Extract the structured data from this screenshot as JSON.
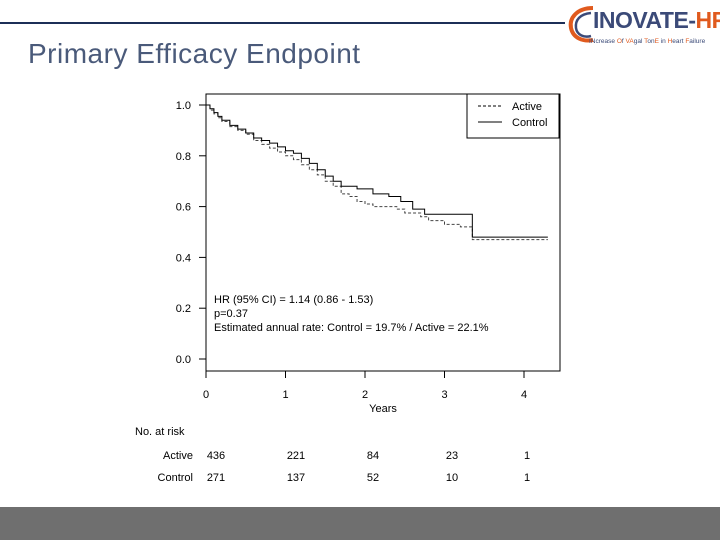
{
  "slide": {
    "title": "Primary Efficacy Endpoint"
  },
  "logo": {
    "name_main": "INOVATE-",
    "name_accent": "HF",
    "tagline_parts": [
      "INcrease ",
      "O",
      "f ",
      "VA",
      "gal ",
      "T",
      "on",
      "E",
      " in ",
      "H",
      "eart ",
      "F",
      "ailure"
    ]
  },
  "colors": {
    "title": "#4a5a7a",
    "rule": "#1c2f57",
    "logo_blue": "#3b4a78",
    "logo_orange": "#e05a1e",
    "footer": "#6f6f6f"
  },
  "chart_data": {
    "type": "line",
    "xlabel": "Years",
    "ylabel": "",
    "xlim": [
      0,
      4.4
    ],
    "ylim": [
      0,
      1.0
    ],
    "x_ticks": [
      "0",
      "1",
      "2",
      "3",
      "4"
    ],
    "y_ticks": [
      "1.0",
      "0.8",
      "0.6",
      "0.4",
      "0.2",
      "0.0"
    ],
    "legend": {
      "position": "top-right",
      "entries": [
        "Active",
        "Control"
      ]
    },
    "series": [
      {
        "name": "Active",
        "style": "dashed",
        "points": [
          [
            0,
            1.0
          ],
          [
            0.05,
            0.98
          ],
          [
            0.1,
            0.965
          ],
          [
            0.15,
            0.95
          ],
          [
            0.2,
            0.935
          ],
          [
            0.3,
            0.915
          ],
          [
            0.4,
            0.9
          ],
          [
            0.5,
            0.885
          ],
          [
            0.6,
            0.86
          ],
          [
            0.7,
            0.845
          ],
          [
            0.8,
            0.83
          ],
          [
            0.9,
            0.815
          ],
          [
            1.0,
            0.8
          ],
          [
            1.1,
            0.785
          ],
          [
            1.2,
            0.765
          ],
          [
            1.3,
            0.745
          ],
          [
            1.4,
            0.725
          ],
          [
            1.5,
            0.7
          ],
          [
            1.6,
            0.68
          ],
          [
            1.7,
            0.65
          ],
          [
            1.8,
            0.64
          ],
          [
            1.9,
            0.62
          ],
          [
            2.0,
            0.61
          ],
          [
            2.1,
            0.6
          ],
          [
            2.3,
            0.6
          ],
          [
            2.4,
            0.59
          ],
          [
            2.5,
            0.575
          ],
          [
            2.7,
            0.56
          ],
          [
            2.8,
            0.545
          ],
          [
            3.0,
            0.53
          ],
          [
            3.2,
            0.52
          ],
          [
            3.35,
            0.47
          ],
          [
            4.3,
            0.47
          ]
        ]
      },
      {
        "name": "Control",
        "style": "solid",
        "points": [
          [
            0,
            1.0
          ],
          [
            0.05,
            0.985
          ],
          [
            0.1,
            0.97
          ],
          [
            0.15,
            0.955
          ],
          [
            0.2,
            0.94
          ],
          [
            0.3,
            0.92
          ],
          [
            0.4,
            0.905
          ],
          [
            0.5,
            0.89
          ],
          [
            0.6,
            0.87
          ],
          [
            0.7,
            0.86
          ],
          [
            0.8,
            0.85
          ],
          [
            0.9,
            0.835
          ],
          [
            1.0,
            0.82
          ],
          [
            1.1,
            0.81
          ],
          [
            1.2,
            0.79
          ],
          [
            1.3,
            0.77
          ],
          [
            1.4,
            0.745
          ],
          [
            1.5,
            0.72
          ],
          [
            1.6,
            0.7
          ],
          [
            1.7,
            0.68
          ],
          [
            1.9,
            0.67
          ],
          [
            2.1,
            0.65
          ],
          [
            2.3,
            0.64
          ],
          [
            2.45,
            0.62
          ],
          [
            2.6,
            0.59
          ],
          [
            2.75,
            0.57
          ],
          [
            3.35,
            0.57
          ],
          [
            3.35,
            0.48
          ],
          [
            4.3,
            0.48
          ]
        ]
      }
    ],
    "annotations": [
      "HR (95% CI) = 1.14 (0.86 - 1.53)",
      "p=0.37",
      "Estimated annual rate: Control = 19.7% / Active = 22.1%"
    ],
    "risk_table": {
      "header": "No. at risk",
      "rows": [
        {
          "label": "Active",
          "values": [
            "436",
            "221",
            "84",
            "23",
            "1"
          ]
        },
        {
          "label": "Control",
          "values": [
            "271",
            "137",
            "52",
            "10",
            "1"
          ]
        }
      ]
    }
  }
}
